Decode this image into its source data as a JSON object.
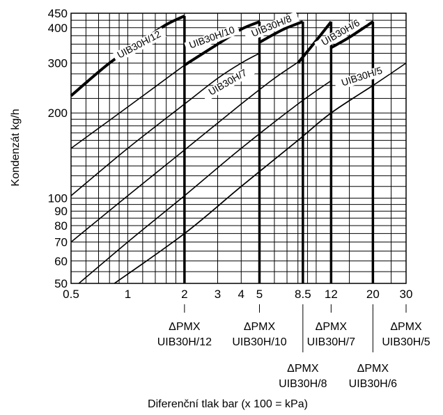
{
  "chart_data": {
    "type": "line",
    "xlabel": "Diferenční tlak bar (x 100 = kPa)",
    "ylabel": "Kondenzát kg/h",
    "x_scale": "log",
    "y_scale": "log",
    "xlim": [
      0.5,
      30
    ],
    "ylim": [
      50,
      450
    ],
    "grid": true,
    "x_ticks": [
      {
        "value": 0.5,
        "label": "0.5"
      },
      {
        "value": 1,
        "label": "1"
      },
      {
        "value": 2,
        "label": "2"
      },
      {
        "value": 3,
        "label": "3"
      },
      {
        "value": 4,
        "label": "4"
      },
      {
        "value": 5,
        "label": "5"
      },
      {
        "value": 8.5,
        "label": "8.5"
      },
      {
        "value": 12,
        "label": "12"
      },
      {
        "value": 20,
        "label": "20"
      },
      {
        "value": 30,
        "label": "30"
      }
    ],
    "y_ticks": [
      {
        "value": 50,
        "label": "50"
      },
      {
        "value": 60,
        "label": "60"
      },
      {
        "value": 70,
        "label": "70"
      },
      {
        "value": 80,
        "label": "80"
      },
      {
        "value": 90,
        "label": "90"
      },
      {
        "value": 100,
        "label": "100"
      },
      {
        "value": 200,
        "label": "200"
      },
      {
        "value": 300,
        "label": "300"
      },
      {
        "value": 400,
        "label": "400"
      },
      {
        "value": 450,
        "label": "450"
      }
    ],
    "series": [
      {
        "name": "UIB30H/12",
        "dpmx": 2,
        "points": [
          [
            0.5,
            230
          ],
          [
            0.8,
            300
          ],
          [
            1.2,
            360
          ],
          [
            1.6,
            410
          ],
          [
            2,
            440
          ]
        ],
        "low_curve": [
          [
            0.5,
            150
          ],
          [
            1,
            210
          ],
          [
            2,
            295
          ]
        ]
      },
      {
        "name": "UIB30H/10",
        "dpmx": 5,
        "points": [
          [
            0.5,
            102
          ],
          [
            1,
            150
          ],
          [
            2,
            215
          ],
          [
            3,
            265
          ],
          [
            4,
            300
          ],
          [
            5,
            325
          ]
        ],
        "high_curve": [
          [
            2,
            295
          ],
          [
            3,
            350
          ],
          [
            4,
            395
          ],
          [
            5,
            420
          ]
        ]
      },
      {
        "name": "UIB30H/8",
        "dpmx": 8.5,
        "points": [
          [
            0.5,
            70
          ],
          [
            1,
            102
          ],
          [
            2,
            148
          ],
          [
            4,
            215
          ],
          [
            6,
            265
          ],
          [
            8.5,
            310
          ]
        ],
        "high_curve": [
          [
            5,
            355
          ],
          [
            6,
            380
          ],
          [
            7,
            400
          ],
          [
            8.5,
            420
          ]
        ]
      },
      {
        "name": "UIB30H/7",
        "dpmx": 12,
        "points": [
          [
            0.55,
            50
          ],
          [
            1,
            70
          ],
          [
            2,
            102
          ],
          [
            4,
            150
          ],
          [
            8,
            215
          ],
          [
            12,
            260
          ]
        ],
        "high_curve": [
          [
            8,
            300
          ],
          [
            10,
            360
          ],
          [
            12,
            420
          ]
        ]
      },
      {
        "name": "UIB30H/6",
        "dpmx": 20,
        "points": [
          [
            0.85,
            50
          ],
          [
            2,
            75
          ],
          [
            4,
            110
          ],
          [
            8,
            160
          ],
          [
            12,
            200
          ],
          [
            20,
            250
          ]
        ],
        "high_curve": [
          [
            12,
            340
          ],
          [
            15,
            370
          ],
          [
            20,
            420
          ]
        ]
      },
      {
        "name": "UIB30H/5",
        "dpmx": 30,
        "points": [
          [
            0.85,
            50
          ],
          [
            2,
            75
          ],
          [
            4,
            110
          ],
          [
            8,
            160
          ],
          [
            12,
            200
          ],
          [
            20,
            250
          ],
          [
            30,
            300
          ]
        ]
      }
    ],
    "dpmx_labels": [
      {
        "symbol": "ΔPMX",
        "model": "UIB30H/12",
        "x": 2,
        "row": 1
      },
      {
        "symbol": "ΔPMX",
        "model": "UIB30H/10",
        "x": 5,
        "row": 1
      },
      {
        "symbol": "ΔPMX",
        "model": "UIB30H/8",
        "x": 8.5,
        "row": 2
      },
      {
        "symbol": "ΔPMX",
        "model": "UIB30H/7",
        "x": 12,
        "row": 1
      },
      {
        "symbol": "ΔPMX",
        "model": "UIB30H/6",
        "x": 20,
        "row": 2
      },
      {
        "symbol": "ΔPMX",
        "model": "UIB30H/5",
        "x": 30,
        "row": 1
      }
    ]
  }
}
